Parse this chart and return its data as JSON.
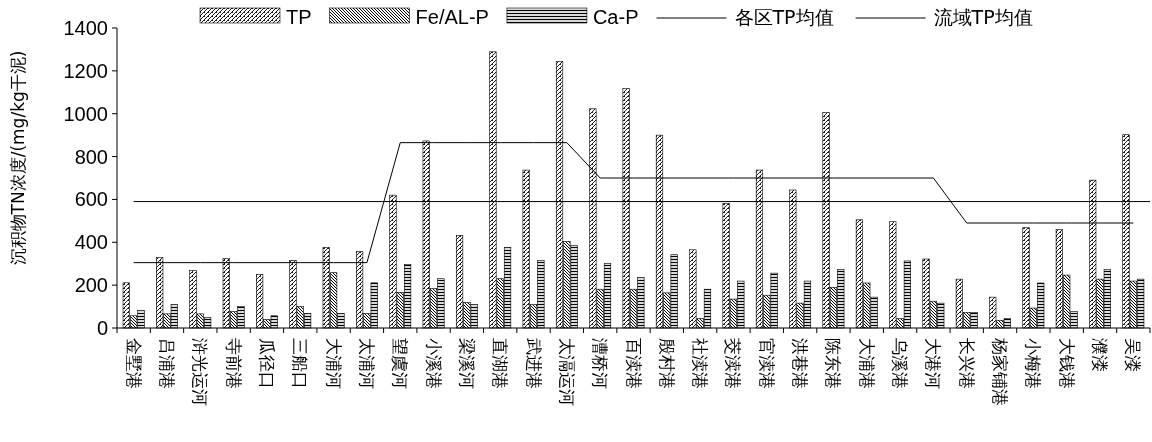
{
  "chart_data": {
    "type": "bar",
    "ylabel": "沉积物TN浓度/(mg/kg干泥)",
    "categories": [
      "金墅港",
      "吕浦港",
      "浒光运河",
      "寺前港",
      "瓜径口",
      "三船口",
      "大浦河",
      "太浦河",
      "望虞河",
      "小溪港",
      "梁溪河",
      "直湖港",
      "武进港",
      "太滆运河",
      "漕桥河",
      "百渎港",
      "殷村港",
      "社渎港",
      "茭渎港",
      "官渎港",
      "洪巷港",
      "陈东港",
      "大浦港",
      "乌溪港",
      "大港河",
      "长兴港",
      "杨家铺港",
      "小梅港",
      "大钱港",
      "濮溇",
      "吴溇"
    ],
    "series": [
      {
        "name": "TP",
        "color": "#000000",
        "values": [
          211,
          329,
          269,
          324,
          250,
          315,
          376,
          357,
          620,
          873,
          432,
          1289,
          737,
          1243,
          1023,
          1117,
          900,
          365,
          582,
          737,
          644,
          1005,
          505,
          496,
          322,
          228,
          144,
          468,
          459,
          690,
          902
        ]
      },
      {
        "name": "Fe/AL-P",
        "color": "#000000",
        "values": [
          57,
          66,
          66,
          78,
          40,
          100,
          258,
          68,
          166,
          184,
          120,
          230,
          109,
          404,
          181,
          181,
          164,
          44,
          135,
          153,
          116,
          190,
          210,
          44,
          125,
          73,
          36,
          93,
          247,
          228,
          219
        ]
      },
      {
        "name": "Ca-P",
        "color": "#000000",
        "values": [
          81,
          109,
          49,
          100,
          57,
          68,
          68,
          211,
          296,
          230,
          109,
          376,
          315,
          386,
          302,
          235,
          342,
          181,
          219,
          256,
          219,
          274,
          144,
          313,
          116,
          73,
          44,
          210,
          78,
          274,
          228
        ]
      },
      {
        "name": "各区TP均值",
        "type": "line",
        "color": "#000000",
        "values": [
          305,
          305,
          305,
          305,
          305,
          305,
          305,
          305,
          865,
          865,
          865,
          865,
          865,
          865,
          700,
          700,
          700,
          700,
          700,
          700,
          700,
          700,
          700,
          700,
          700,
          490,
          490,
          490,
          490,
          490,
          490
        ]
      }
    ],
    "ref_lines": [
      {
        "axis": "y",
        "value": 590,
        "label": "流域TP均值",
        "color": "#000000"
      }
    ],
    "ylim": [
      0,
      1400
    ],
    "yticks": [
      0,
      200,
      400,
      600,
      800,
      1000,
      1200,
      1400
    ],
    "grid": false,
    "legend": "top"
  }
}
